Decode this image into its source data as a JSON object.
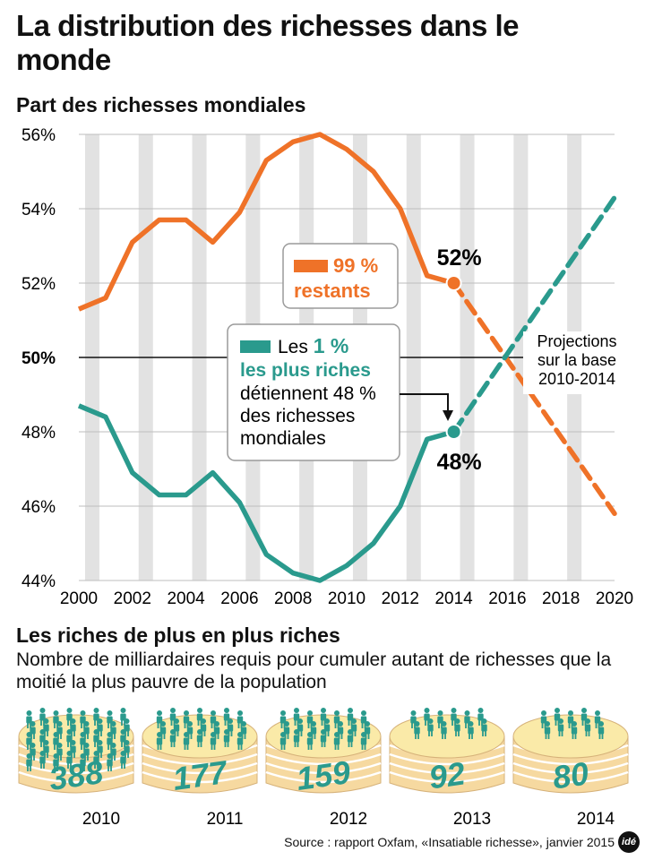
{
  "title": "La distribution des richesses dans le monde",
  "section1_title": "Part des richesses mondiales",
  "callout_orange": {
    "pct": "99 %",
    "label": "restants"
  },
  "callout_teal": {
    "line1_prefix": "Les",
    "line1_pct": "1 %",
    "line2": "les plus riches",
    "rest": [
      "détiennent 48 %",
      "des richesses",
      "mondiales"
    ]
  },
  "value_labels": {
    "top": "52%",
    "bottom": "48%"
  },
  "projection_note": [
    "Projections",
    "sur la base",
    "2010-2014"
  ],
  "colors": {
    "orange": "#ef7228",
    "teal": "#2a9a8d",
    "band": "#e2e2e2",
    "cake_top": "#faeaa8",
    "cake_side": "#f6d9a0"
  },
  "chart_data": {
    "type": "line",
    "ylim": [
      44,
      56
    ],
    "xlim": [
      2000,
      2020
    ],
    "y_ticks": [
      "44%",
      "46%",
      "48%",
      "50%",
      "52%",
      "54%",
      "56%"
    ],
    "x_ticks": [
      "2000",
      "2002",
      "2004",
      "2006",
      "2008",
      "2010",
      "2012",
      "2014",
      "2016",
      "2018",
      "2020"
    ],
    "grid": true,
    "series": [
      {
        "name": "99 % restants",
        "x": [
          2000,
          2001,
          2002,
          2003,
          2004,
          2005,
          2006,
          2007,
          2008,
          2009,
          2010,
          2011,
          2012,
          2013,
          2014
        ],
        "values": [
          51.3,
          51.6,
          53.1,
          53.7,
          53.7,
          53.1,
          53.9,
          55.3,
          55.8,
          56.0,
          55.6,
          55.0,
          54.0,
          52.2,
          52.0
        ]
      },
      {
        "name": "Les 1 % les plus riches",
        "x": [
          2000,
          2001,
          2002,
          2003,
          2004,
          2005,
          2006,
          2007,
          2008,
          2009,
          2010,
          2011,
          2012,
          2013,
          2014
        ],
        "values": [
          48.7,
          48.4,
          46.9,
          46.3,
          46.3,
          46.9,
          46.1,
          44.7,
          44.2,
          44.0,
          44.4,
          45.0,
          46.0,
          47.8,
          48.0
        ]
      }
    ],
    "projections": [
      {
        "series": "99 % restants",
        "x": [
          2014,
          2020
        ],
        "values": [
          52.0,
          45.8
        ]
      },
      {
        "series": "Les 1 % les plus riches",
        "x": [
          2014,
          2020
        ],
        "values": [
          48.0,
          54.3
        ]
      }
    ]
  },
  "section2_title": "Les riches de plus en plus riches",
  "section2_desc": "Nombre de milliardaires requis pour cumuler autant de richesses que la moitié la plus pauvre de la population",
  "billionaires": [
    {
      "year": "2010",
      "count": "388"
    },
    {
      "year": "2011",
      "count": "177"
    },
    {
      "year": "2012",
      "count": "159"
    },
    {
      "year": "2013",
      "count": "92"
    },
    {
      "year": "2014",
      "count": "80"
    }
  ],
  "source": "Source : rapport Oxfam, «Insatiable richesse», janvier 2015",
  "logo_text": "idé"
}
